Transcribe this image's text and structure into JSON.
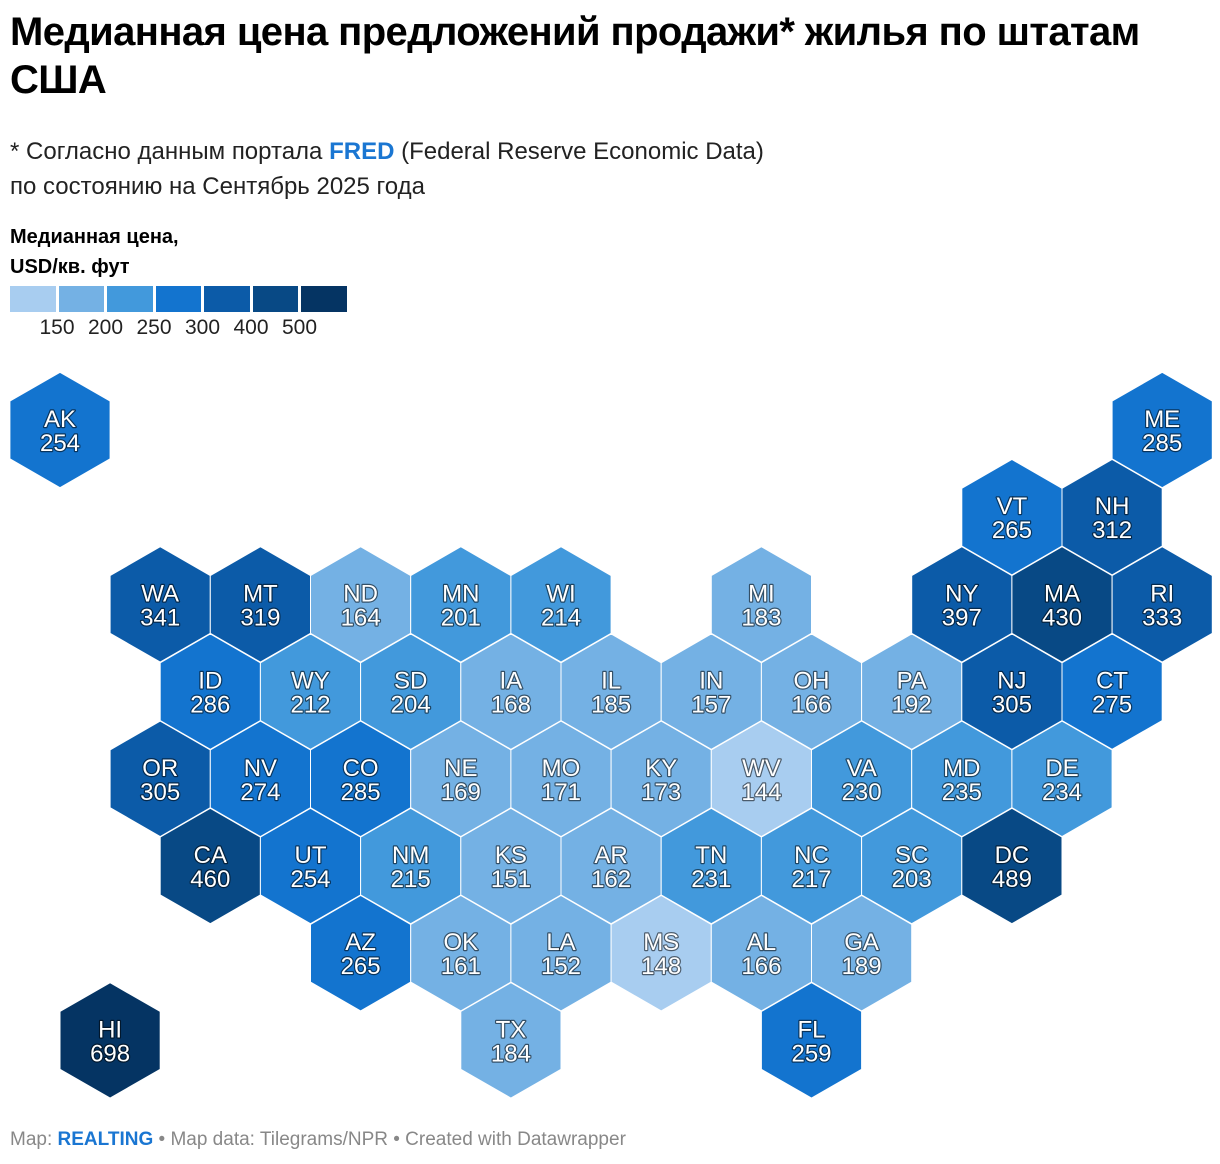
{
  "title": "Медианная цена предложений продажи* жилья по штатам США",
  "subtitle": {
    "line1_prefix": "* Согласно данным портала ",
    "link": "FRED",
    "line1_suffix": " (Federal Reserve Economic Data)",
    "line2": "по состоянию на Сентябрь 2025 года"
  },
  "legend": {
    "title_line1": "Медианная цена,",
    "title_line2": "USD/кв. фут",
    "colors": [
      "#a8cdf0",
      "#74b1e4",
      "#4299dc",
      "#1374cf",
      "#0c5ba8",
      "#084985",
      "#053463"
    ],
    "breaks": [
      "150",
      "200",
      "250",
      "300",
      "400",
      "500"
    ]
  },
  "footer": {
    "map_prefix": "Map: ",
    "brand": "REALTING",
    "rest": " • Map data: Tilegrams/NPR • Created with Datawrapper"
  },
  "map_data": {
    "type": "hex-tile-map",
    "unit": "USD/кв. фут",
    "states": [
      {
        "code": "AK",
        "value": 254,
        "col": 0,
        "row": 0
      },
      {
        "code": "ME",
        "value": 285,
        "col": 11,
        "row": 0
      },
      {
        "code": "VT",
        "value": 265,
        "col": 9.5,
        "row": 1
      },
      {
        "code": "NH",
        "value": 312,
        "col": 10.5,
        "row": 1
      },
      {
        "code": "WA",
        "value": 341,
        "col": 1,
        "row": 2
      },
      {
        "code": "MT",
        "value": 319,
        "col": 2,
        "row": 2
      },
      {
        "code": "ND",
        "value": 164,
        "col": 3,
        "row": 2
      },
      {
        "code": "MN",
        "value": 201,
        "col": 4,
        "row": 2
      },
      {
        "code": "WI",
        "value": 214,
        "col": 5,
        "row": 2
      },
      {
        "code": "MI",
        "value": 183,
        "col": 7,
        "row": 2
      },
      {
        "code": "NY",
        "value": 397,
        "col": 9,
        "row": 2
      },
      {
        "code": "MA",
        "value": 430,
        "col": 10,
        "row": 2
      },
      {
        "code": "RI",
        "value": 333,
        "col": 11,
        "row": 2
      },
      {
        "code": "ID",
        "value": 286,
        "col": 1.5,
        "row": 3
      },
      {
        "code": "WY",
        "value": 212,
        "col": 2.5,
        "row": 3
      },
      {
        "code": "SD",
        "value": 204,
        "col": 3.5,
        "row": 3
      },
      {
        "code": "IA",
        "value": 168,
        "col": 4.5,
        "row": 3
      },
      {
        "code": "IL",
        "value": 185,
        "col": 5.5,
        "row": 3
      },
      {
        "code": "IN",
        "value": 157,
        "col": 6.5,
        "row": 3
      },
      {
        "code": "OH",
        "value": 166,
        "col": 7.5,
        "row": 3
      },
      {
        "code": "PA",
        "value": 192,
        "col": 8.5,
        "row": 3
      },
      {
        "code": "NJ",
        "value": 305,
        "col": 9.5,
        "row": 3
      },
      {
        "code": "CT",
        "value": 275,
        "col": 10.5,
        "row": 3
      },
      {
        "code": "OR",
        "value": 305,
        "col": 1,
        "row": 4
      },
      {
        "code": "NV",
        "value": 274,
        "col": 2,
        "row": 4
      },
      {
        "code": "CO",
        "value": 285,
        "col": 3,
        "row": 4
      },
      {
        "code": "NE",
        "value": 169,
        "col": 4,
        "row": 4
      },
      {
        "code": "MO",
        "value": 171,
        "col": 5,
        "row": 4
      },
      {
        "code": "KY",
        "value": 173,
        "col": 6,
        "row": 4
      },
      {
        "code": "WV",
        "value": 144,
        "col": 7,
        "row": 4
      },
      {
        "code": "VA",
        "value": 230,
        "col": 8,
        "row": 4
      },
      {
        "code": "MD",
        "value": 235,
        "col": 9,
        "row": 4
      },
      {
        "code": "DE",
        "value": 234,
        "col": 10,
        "row": 4
      },
      {
        "code": "CA",
        "value": 460,
        "col": 1.5,
        "row": 5
      },
      {
        "code": "UT",
        "value": 254,
        "col": 2.5,
        "row": 5
      },
      {
        "code": "NM",
        "value": 215,
        "col": 3.5,
        "row": 5
      },
      {
        "code": "KS",
        "value": 151,
        "col": 4.5,
        "row": 5
      },
      {
        "code": "AR",
        "value": 162,
        "col": 5.5,
        "row": 5
      },
      {
        "code": "TN",
        "value": 231,
        "col": 6.5,
        "row": 5
      },
      {
        "code": "NC",
        "value": 217,
        "col": 7.5,
        "row": 5
      },
      {
        "code": "SC",
        "value": 203,
        "col": 8.5,
        "row": 5
      },
      {
        "code": "DC",
        "value": 489,
        "col": 9.5,
        "row": 5
      },
      {
        "code": "AZ",
        "value": 265,
        "col": 3,
        "row": 6
      },
      {
        "code": "OK",
        "value": 161,
        "col": 4,
        "row": 6
      },
      {
        "code": "LA",
        "value": 152,
        "col": 5,
        "row": 6
      },
      {
        "code": "MS",
        "value": 148,
        "col": 6,
        "row": 6
      },
      {
        "code": "AL",
        "value": 166,
        "col": 7,
        "row": 6
      },
      {
        "code": "GA",
        "value": 189,
        "col": 8,
        "row": 6
      },
      {
        "code": "HI",
        "value": 698,
        "col": 0.5,
        "row": 7
      },
      {
        "code": "TX",
        "value": 184,
        "col": 4.5,
        "row": 7
      },
      {
        "code": "FL",
        "value": 259,
        "col": 7.5,
        "row": 7
      }
    ]
  }
}
